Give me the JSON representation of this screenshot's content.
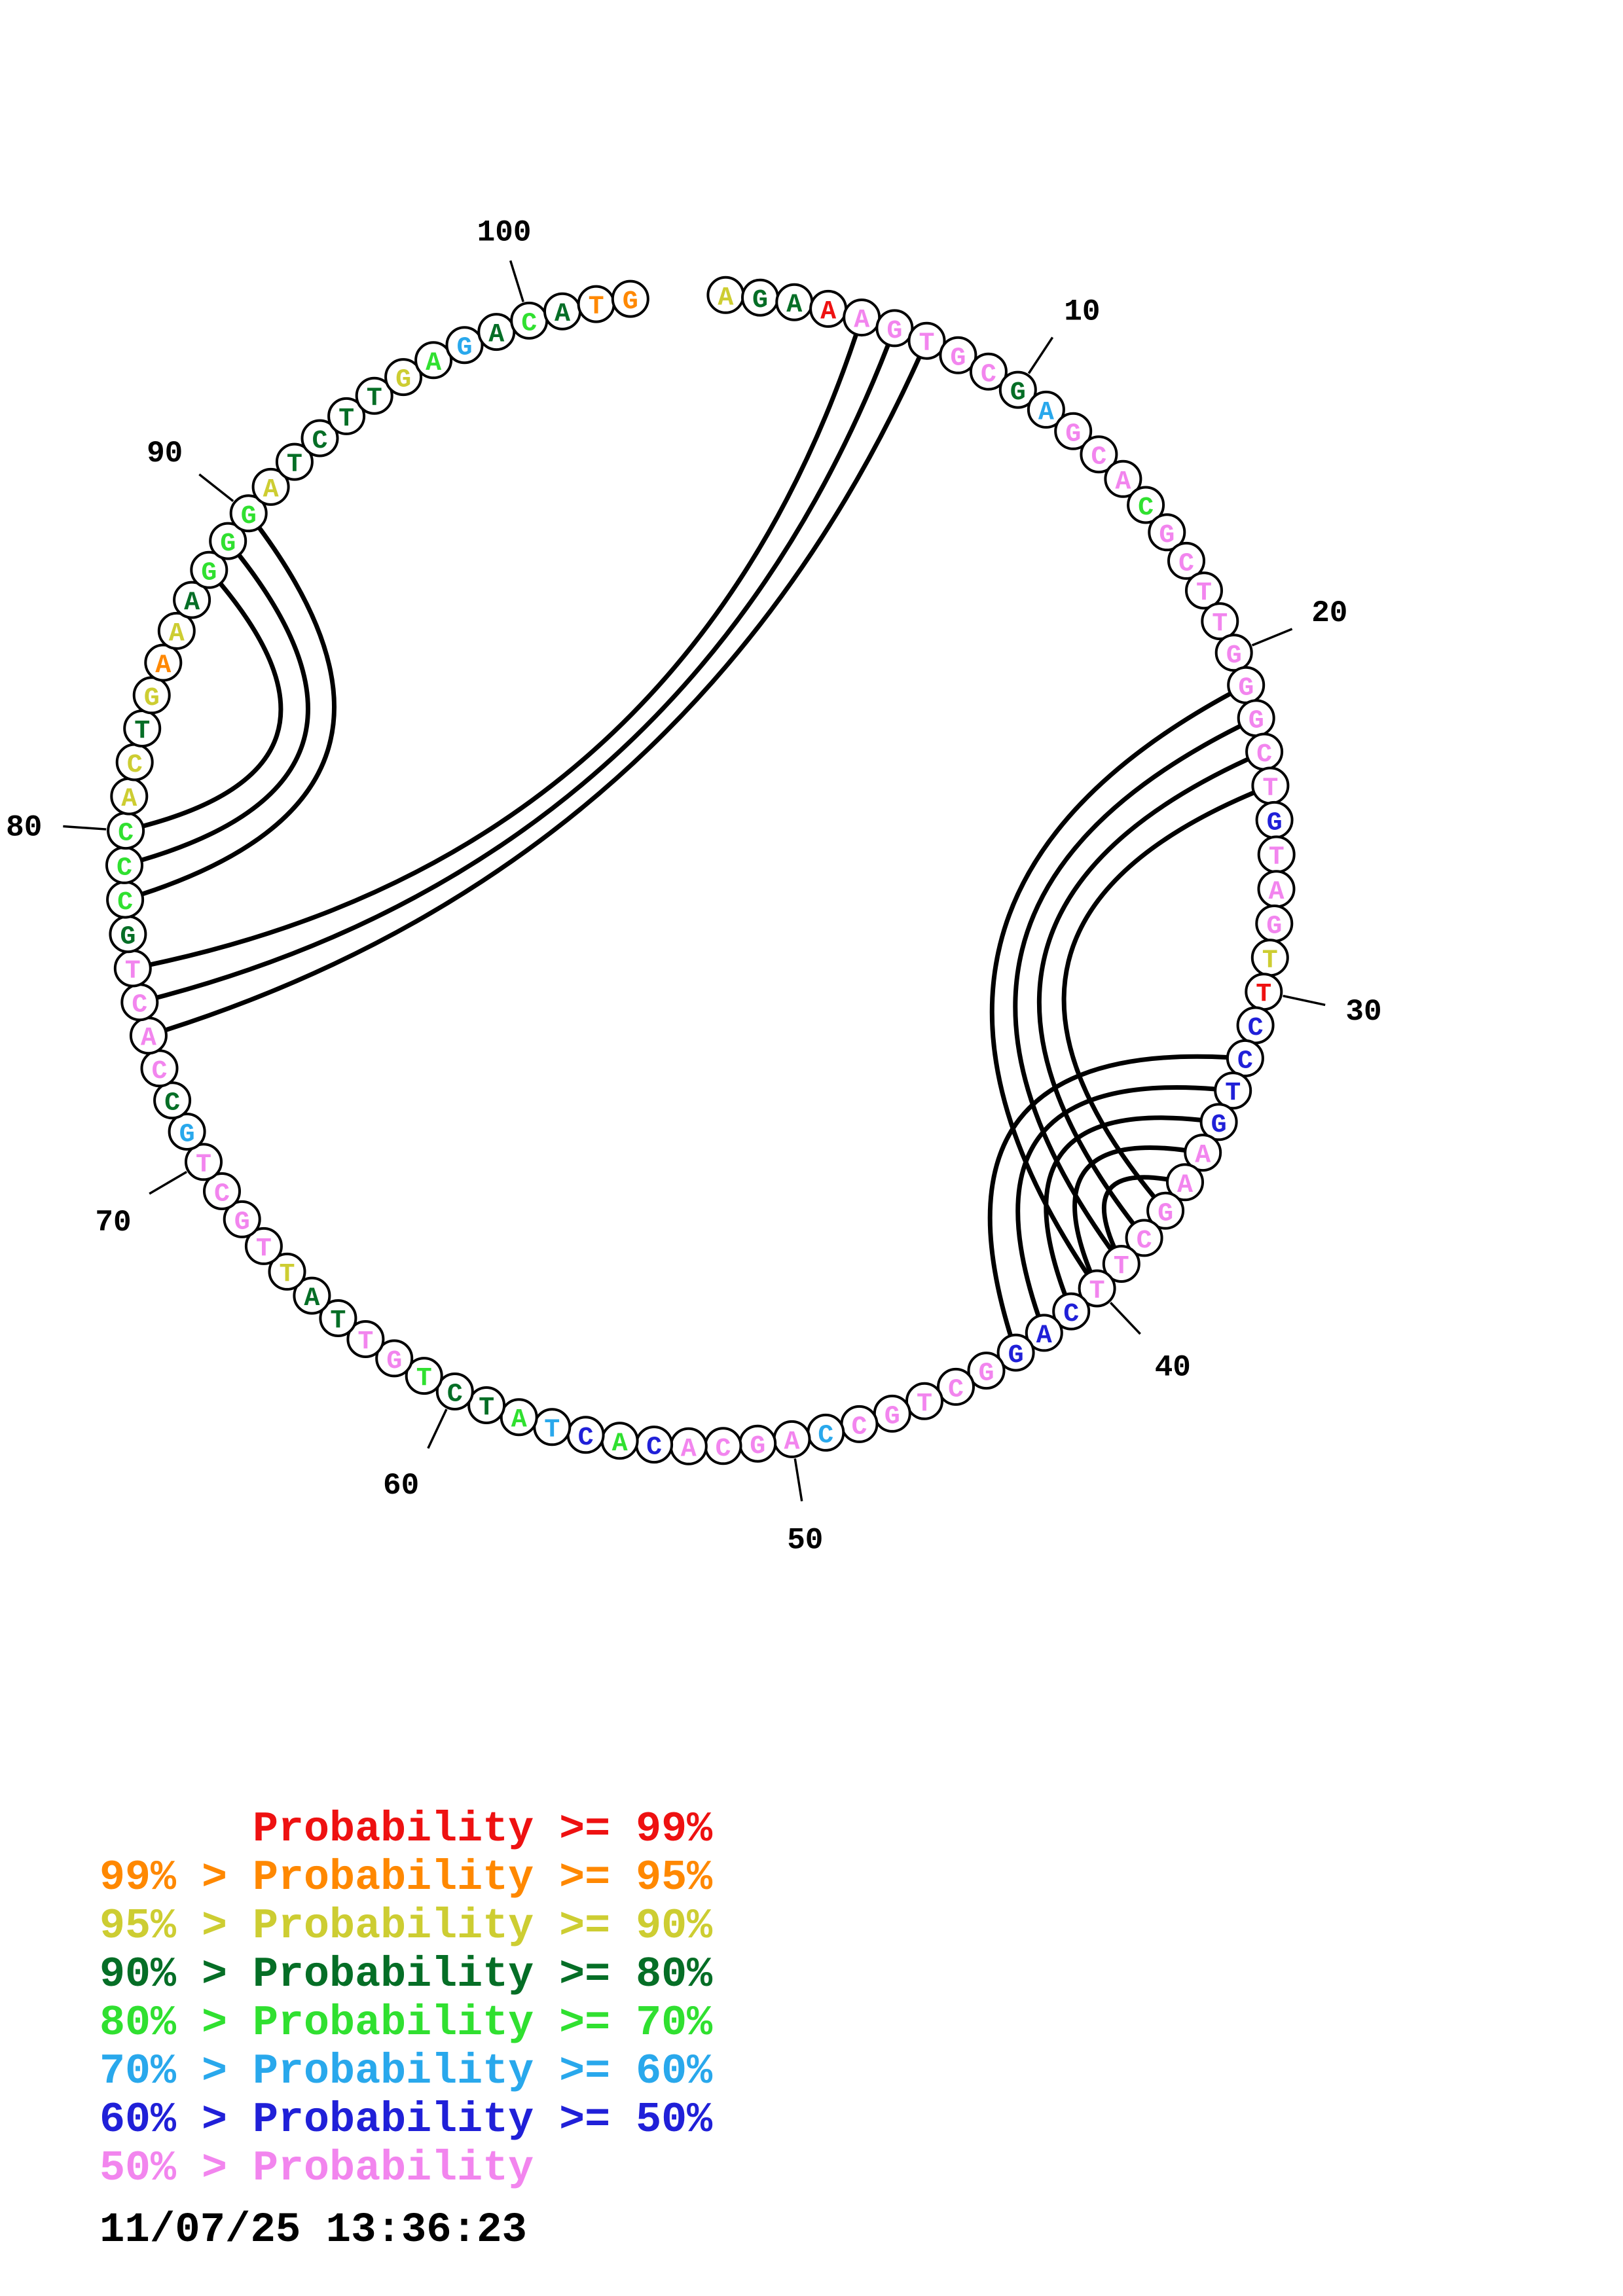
{
  "chart_data": {
    "type": "table",
    "title": "Circular base-pair probability plot",
    "sequence_length": 103,
    "sequence": "AGAAAGTGCGAGCACGCTTGGGCTGTAGTTCCTGAAGCTTCAGGCTGCCAGCACACTATCTGTTATTGCTGCCACTGCCCACTGAAAGGGATCTTGAGACATG",
    "probability_bin_per_base": [
      "y",
      "dg",
      "dg",
      "r",
      "v",
      "v",
      "v",
      "v",
      "v",
      "dg",
      "c",
      "v",
      "v",
      "v",
      "bg",
      "v",
      "v",
      "v",
      "v",
      "v",
      "v",
      "v",
      "v",
      "v",
      "db",
      "v",
      "v",
      "v",
      "y",
      "r",
      "db",
      "db",
      "db",
      "db",
      "v",
      "v",
      "v",
      "v",
      "v",
      "v",
      "db",
      "db",
      "db",
      "v",
      "v",
      "v",
      "v",
      "v",
      "c",
      "v",
      "v",
      "v",
      "v",
      "db",
      "bg",
      "db",
      "c",
      "bg",
      "dg",
      "dg",
      "bg",
      "v",
      "v",
      "dg",
      "dg",
      "y",
      "v",
      "v",
      "v",
      "v",
      "c",
      "dg",
      "v",
      "v",
      "v",
      "v",
      "dg",
      "bg",
      "bg",
      "bg",
      "y",
      "y",
      "dg",
      "y",
      "o",
      "y",
      "dg",
      "bg",
      "bg",
      "bg",
      "y",
      "dg",
      "dg",
      "dg",
      "dg",
      "y",
      "bg",
      "c",
      "dg",
      "bg",
      "dg",
      "o",
      "o"
    ],
    "base_pairs": [
      [
        5,
        76
      ],
      [
        6,
        75
      ],
      [
        7,
        74
      ],
      [
        78,
        90
      ],
      [
        79,
        89
      ],
      [
        80,
        88
      ],
      [
        21,
        40
      ],
      [
        22,
        39
      ],
      [
        23,
        38
      ],
      [
        24,
        37
      ],
      [
        32,
        43
      ],
      [
        33,
        42
      ],
      [
        34,
        41
      ],
      [
        35,
        40
      ],
      [
        36,
        39
      ]
    ],
    "position_ticks": [
      10,
      20,
      30,
      40,
      50,
      60,
      70,
      80,
      90,
      100
    ],
    "legend_entries": [
      {
        "text": "      Probability >= 99%",
        "bin": "r"
      },
      {
        "text": "99% > Probability >= 95%",
        "bin": "o"
      },
      {
        "text": "95% > Probability >= 90%",
        "bin": "y"
      },
      {
        "text": "90% > Probability >= 80%",
        "bin": "dg"
      },
      {
        "text": "80% > Probability >= 70%",
        "bin": "bg"
      },
      {
        "text": "70% > Probability >= 60%",
        "bin": "c"
      },
      {
        "text": "60% > Probability >= 50%",
        "bin": "db"
      },
      {
        "text": "50% > Probability",
        "bin": "v"
      }
    ]
  },
  "plot": {
    "ticks": [
      10,
      20,
      30,
      40,
      50,
      60,
      70,
      80,
      90,
      100
    ],
    "pairs": [
      [
        5,
        76
      ],
      [
        6,
        75
      ],
      [
        7,
        74
      ],
      [
        78,
        90
      ],
      [
        79,
        89
      ],
      [
        80,
        88
      ],
      [
        21,
        40
      ],
      [
        22,
        39
      ],
      [
        23,
        38
      ],
      [
        24,
        37
      ],
      [
        32,
        43
      ],
      [
        33,
        42
      ],
      [
        34,
        41
      ],
      [
        35,
        40
      ],
      [
        36,
        39
      ]
    ],
    "bases": [
      [
        "A",
        "y"
      ],
      [
        "G",
        "dg"
      ],
      [
        "A",
        "dg"
      ],
      [
        "A",
        "r"
      ],
      [
        "A",
        "v"
      ],
      [
        "G",
        "v"
      ],
      [
        "T",
        "v"
      ],
      [
        "G",
        "v"
      ],
      [
        "C",
        "v"
      ],
      [
        "G",
        "dg"
      ],
      [
        "A",
        "c"
      ],
      [
        "G",
        "v"
      ],
      [
        "C",
        "v"
      ],
      [
        "A",
        "v"
      ],
      [
        "C",
        "bg"
      ],
      [
        "G",
        "v"
      ],
      [
        "C",
        "v"
      ],
      [
        "T",
        "v"
      ],
      [
        "T",
        "v"
      ],
      [
        "G",
        "v"
      ],
      [
        "G",
        "v"
      ],
      [
        "G",
        "v"
      ],
      [
        "C",
        "v"
      ],
      [
        "T",
        "v"
      ],
      [
        "G",
        "db"
      ],
      [
        "T",
        "v"
      ],
      [
        "A",
        "v"
      ],
      [
        "G",
        "v"
      ],
      [
        "T",
        "y"
      ],
      [
        "T",
        "r"
      ],
      [
        "C",
        "db"
      ],
      [
        "C",
        "db"
      ],
      [
        "T",
        "db"
      ],
      [
        "G",
        "db"
      ],
      [
        "A",
        "v"
      ],
      [
        "A",
        "v"
      ],
      [
        "G",
        "v"
      ],
      [
        "C",
        "v"
      ],
      [
        "T",
        "v"
      ],
      [
        "T",
        "v"
      ],
      [
        "C",
        "db"
      ],
      [
        "A",
        "db"
      ],
      [
        "G",
        "db"
      ],
      [
        "G",
        "v"
      ],
      [
        "C",
        "v"
      ],
      [
        "T",
        "v"
      ],
      [
        "G",
        "v"
      ],
      [
        "C",
        "v"
      ],
      [
        "C",
        "c"
      ],
      [
        "A",
        "v"
      ],
      [
        "G",
        "v"
      ],
      [
        "C",
        "v"
      ],
      [
        "A",
        "v"
      ],
      [
        "C",
        "db"
      ],
      [
        "A",
        "bg"
      ],
      [
        "C",
        "db"
      ],
      [
        "T",
        "c"
      ],
      [
        "A",
        "bg"
      ],
      [
        "T",
        "dg"
      ],
      [
        "C",
        "dg"
      ],
      [
        "T",
        "bg"
      ],
      [
        "G",
        "v"
      ],
      [
        "T",
        "v"
      ],
      [
        "T",
        "dg"
      ],
      [
        "A",
        "dg"
      ],
      [
        "T",
        "y"
      ],
      [
        "T",
        "v"
      ],
      [
        "G",
        "v"
      ],
      [
        "C",
        "v"
      ],
      [
        "T",
        "v"
      ],
      [
        "G",
        "c"
      ],
      [
        "C",
        "dg"
      ],
      [
        "C",
        "v"
      ],
      [
        "A",
        "v"
      ],
      [
        "C",
        "v"
      ],
      [
        "T",
        "v"
      ],
      [
        "G",
        "dg"
      ],
      [
        "C",
        "bg"
      ],
      [
        "C",
        "bg"
      ],
      [
        "C",
        "bg"
      ],
      [
        "A",
        "y"
      ],
      [
        "C",
        "y"
      ],
      [
        "T",
        "dg"
      ],
      [
        "G",
        "y"
      ],
      [
        "A",
        "o"
      ],
      [
        "A",
        "y"
      ],
      [
        "A",
        "dg"
      ],
      [
        "G",
        "bg"
      ],
      [
        "G",
        "bg"
      ],
      [
        "G",
        "bg"
      ],
      [
        "A",
        "y"
      ],
      [
        "T",
        "dg"
      ],
      [
        "C",
        "dg"
      ],
      [
        "T",
        "dg"
      ],
      [
        "T",
        "dg"
      ],
      [
        "G",
        "y"
      ],
      [
        "A",
        "bg"
      ],
      [
        "G",
        "c"
      ],
      [
        "A",
        "dg"
      ],
      [
        "C",
        "bg"
      ],
      [
        "A",
        "dg"
      ],
      [
        "T",
        "o"
      ],
      [
        "G",
        "o"
      ]
    ]
  },
  "legend": {
    "rows": [
      {
        "text": "      Probability >= 99%",
        "bin": "r"
      },
      {
        "text": "99% > Probability >= 95%",
        "bin": "o"
      },
      {
        "text": "95% > Probability >= 90%",
        "bin": "y"
      },
      {
        "text": "90% > Probability >= 80%",
        "bin": "dg"
      },
      {
        "text": "80% > Probability >= 70%",
        "bin": "bg"
      },
      {
        "text": "70% > Probability >= 60%",
        "bin": "c"
      },
      {
        "text": "60% > Probability >= 50%",
        "bin": "db"
      },
      {
        "text": "50% > Probability",
        "bin": "v"
      }
    ]
  },
  "timestamp": "11/07/25 13:36:23",
  "colors": {
    "r": "#ee1111",
    "o": "#ff8800",
    "y": "#cdcd32",
    "dg": "#056e26",
    "bg": "#30e030",
    "c": "#29a8ec",
    "db": "#2020d8",
    "v": "#f285ee",
    "arc": "#000000",
    "outline": "#000000"
  }
}
